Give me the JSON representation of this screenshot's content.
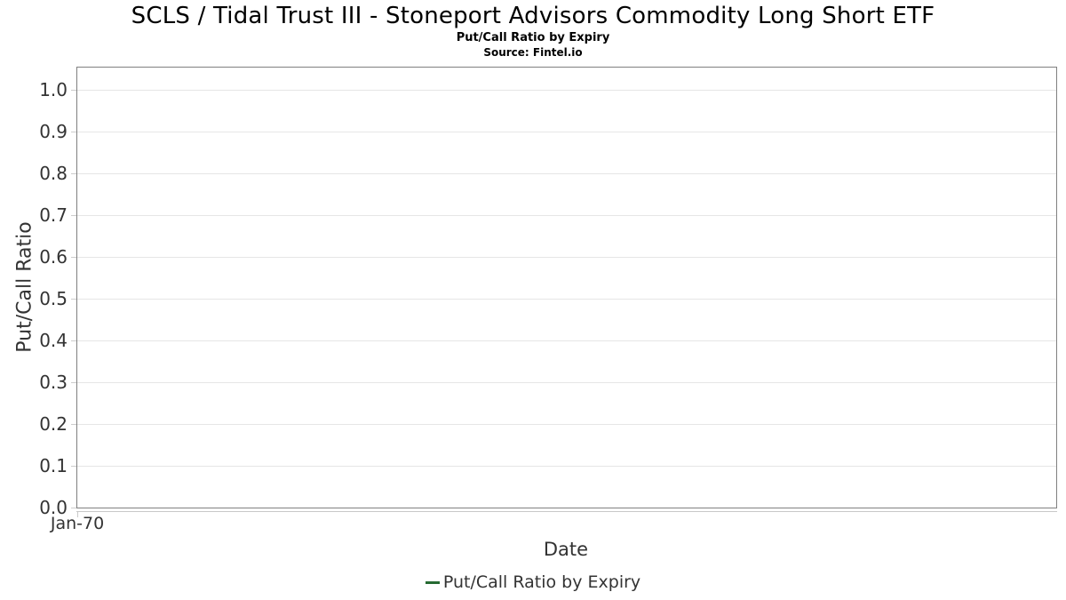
{
  "chart_data": {
    "type": "line",
    "title": "SCLS / Tidal Trust III - Stoneport Advisors Commodity Long Short ETF",
    "subtitle": "Put/Call Ratio by Expiry",
    "source": "Source: Fintel.io",
    "xlabel": "Date",
    "ylabel": "Put/Call Ratio",
    "x_tick_labels": [
      "Jan-70"
    ],
    "y_tick_labels": [
      "0.0",
      "0.1",
      "0.2",
      "0.3",
      "0.4",
      "0.5",
      "0.6",
      "0.7",
      "0.8",
      "0.9",
      "1.0"
    ],
    "ylim": [
      0,
      1.05
    ],
    "grid": true,
    "legend_position": "bottom",
    "series": [
      {
        "name": "Put/Call Ratio by Expiry",
        "color": "#266a32",
        "x": [],
        "values": []
      }
    ],
    "colors": {
      "plot_border": "#808080",
      "gridline": "#e6e6e6",
      "axis_line": "#c9c9c9",
      "tick_text": "#333333",
      "title_text": "#000000"
    }
  }
}
